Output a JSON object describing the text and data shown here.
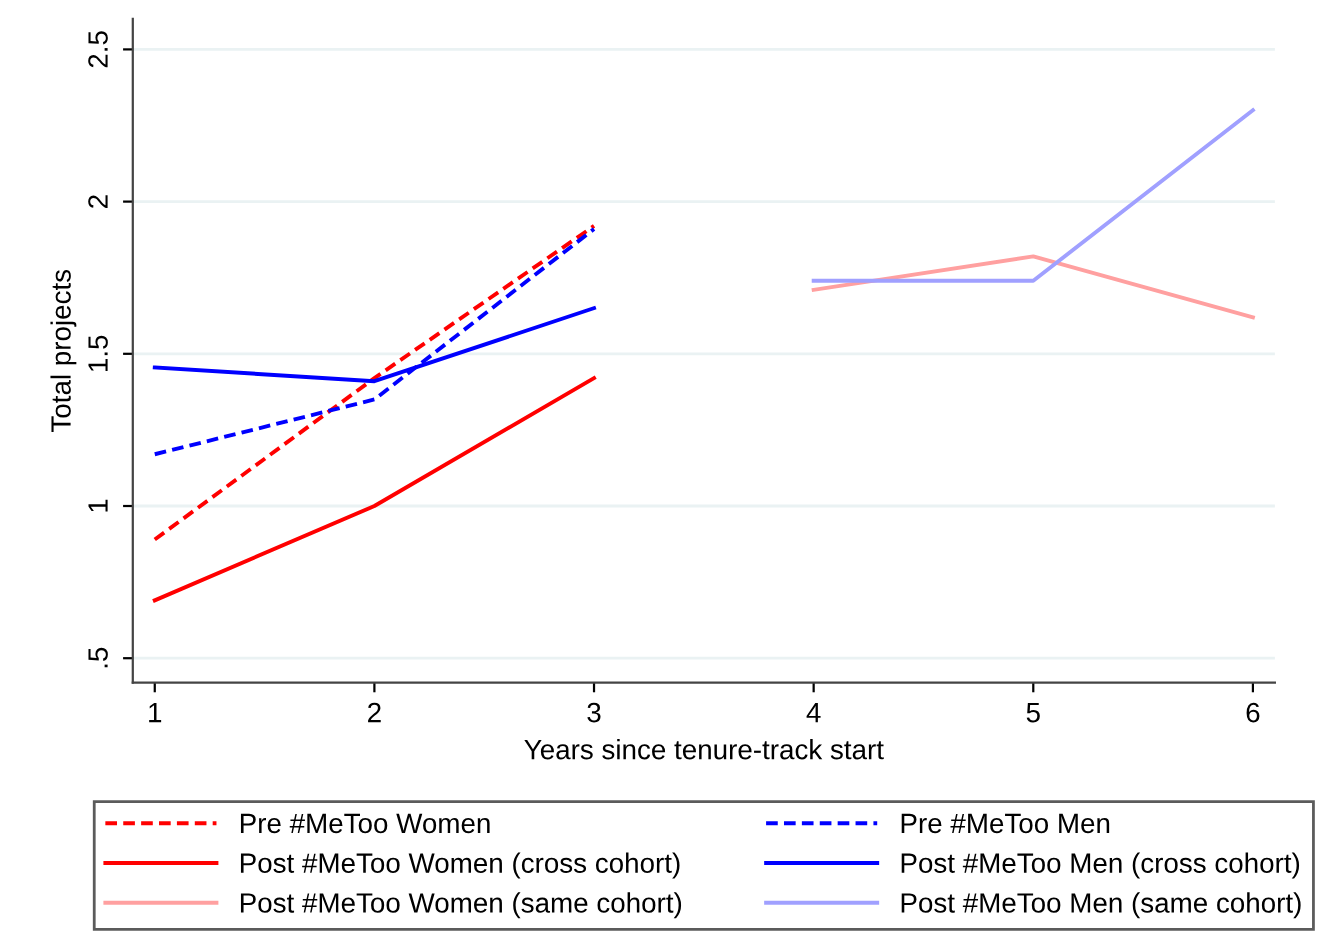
{
  "chart_data": {
    "type": "line",
    "xlabel": "Years since tenure-track start",
    "ylabel": "Total projects",
    "xlim": [
      0.9,
      6.1
    ],
    "xticks": [
      1,
      2,
      3,
      4,
      5,
      6
    ],
    "ylim": [
      0.42,
      2.6
    ],
    "yticks": [
      {
        "value": 0.5,
        "label": ".5"
      },
      1,
      1.5,
      2,
      2.5
    ],
    "grid": "y",
    "legend": "bottom",
    "series": [
      {
        "name": "Pre #MeToo Women",
        "color": "#ff0000",
        "line_style": "dashed",
        "x": [
          1,
          2,
          3
        ],
        "values": [
          0.89,
          1.42,
          1.92
        ]
      },
      {
        "name": "Pre #MeToo Men",
        "color": "#0000ff",
        "line_style": "dashed",
        "x": [
          1,
          2,
          3
        ],
        "values": [
          1.17,
          1.35,
          1.91
        ]
      },
      {
        "name": "Post #MeToo Women (cross cohort)",
        "color": "#ff0000",
        "line_style": "solid",
        "x": [
          1,
          2,
          3
        ],
        "values": [
          0.69,
          1.0,
          1.42
        ]
      },
      {
        "name": "Post #MeToo Men (cross cohort)",
        "color": "#0000ff",
        "line_style": "solid",
        "x": [
          1,
          2,
          3
        ],
        "values": [
          1.455,
          1.41,
          1.65
        ]
      },
      {
        "name": "Post #MeToo Women (same cohort)",
        "color": "#ffa0a0",
        "line_style": "solid",
        "x": [
          4,
          5,
          6
        ],
        "values": [
          1.71,
          1.82,
          1.62
        ]
      },
      {
        "name": "Post #MeToo Men (same cohort)",
        "color": "#a0a0ff",
        "line_style": "solid",
        "x": [
          4,
          5,
          6
        ],
        "values": [
          1.74,
          1.74,
          2.3
        ]
      }
    ]
  }
}
